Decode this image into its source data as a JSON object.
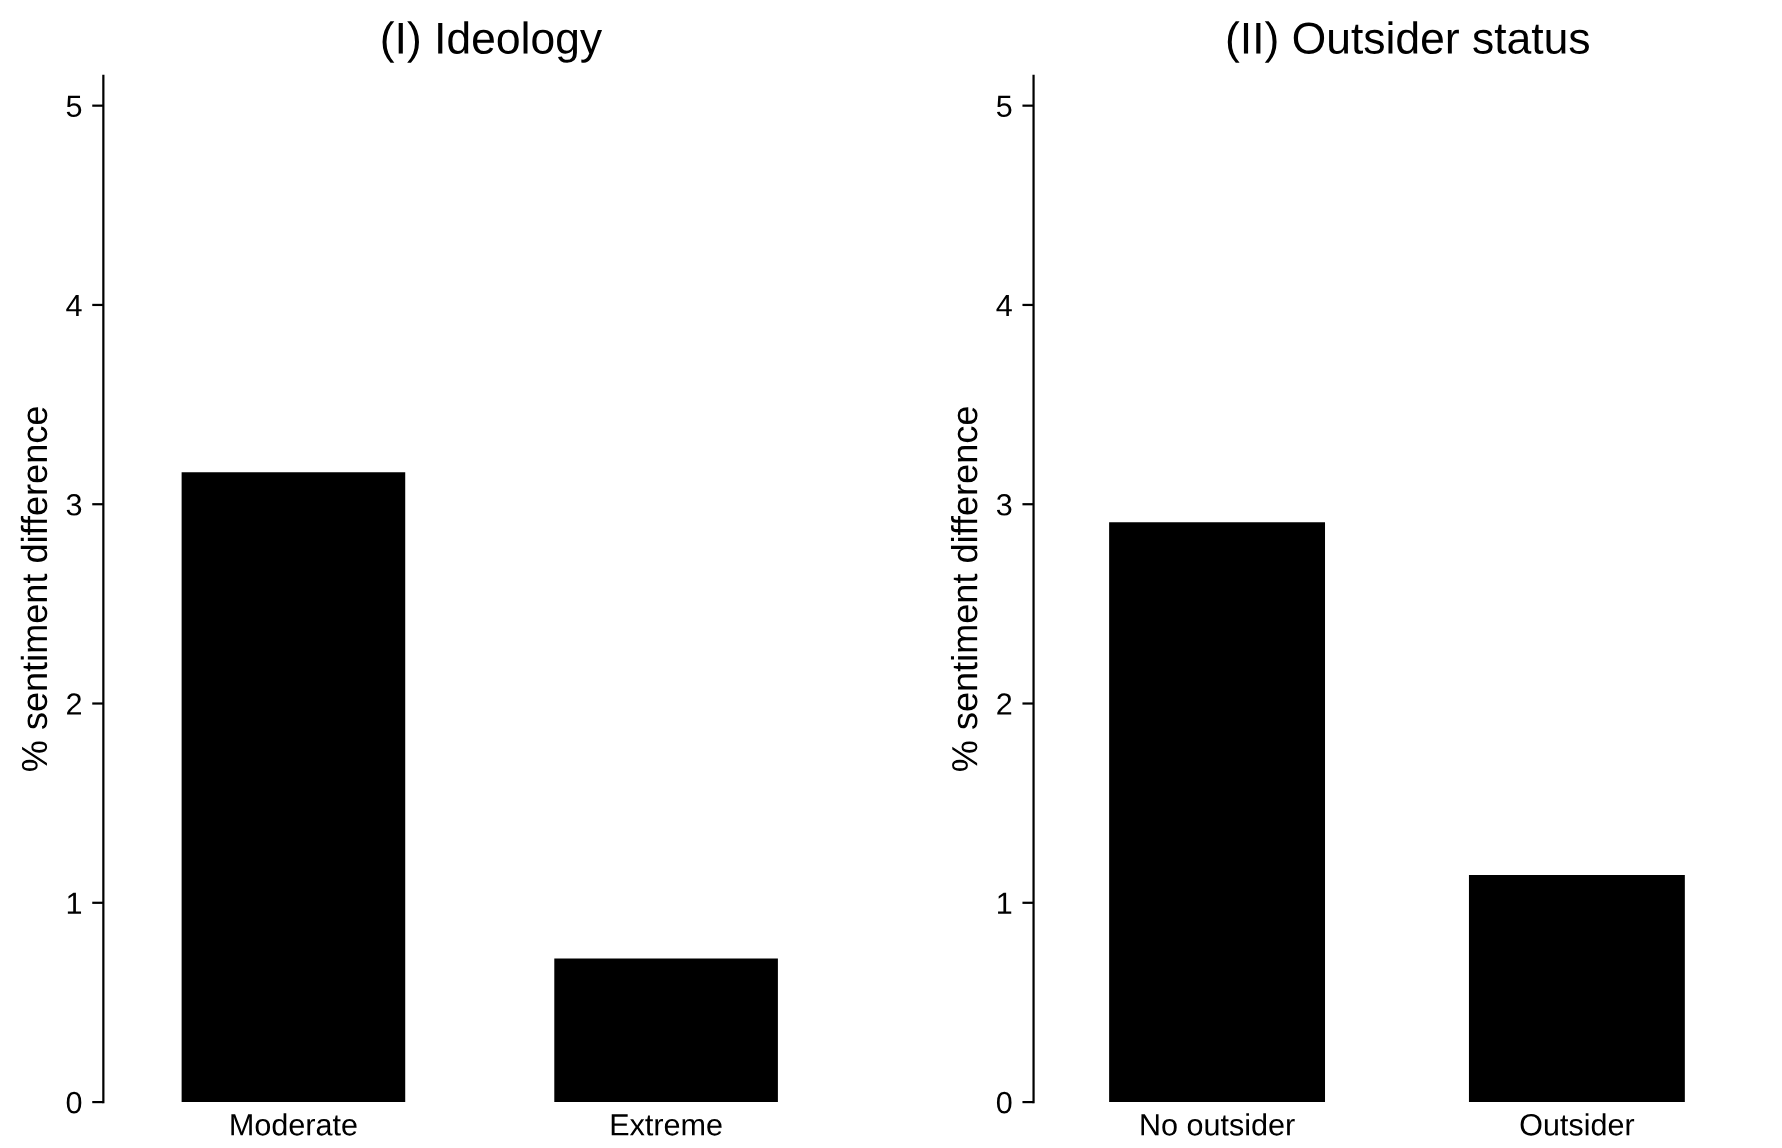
{
  "chart_data": [
    {
      "type": "bar",
      "title": "(I) Ideology",
      "ylabel": "% sentiment difference",
      "categories": [
        "Moderate",
        "Extreme"
      ],
      "values": [
        3.16,
        0.72
      ],
      "color": "#000000",
      "ylim": [
        0,
        5.15
      ],
      "yticks": [
        0,
        1,
        2,
        3,
        4,
        5
      ],
      "grid": false,
      "legend": false
    },
    {
      "type": "bar",
      "title": "(II) Outsider status",
      "ylabel": "% sentiment difference",
      "categories": [
        "No outsider",
        "Outsider"
      ],
      "values": [
        2.91,
        1.14
      ],
      "color": "#000000",
      "ylim": [
        0,
        5.15
      ],
      "yticks": [
        0,
        1,
        2,
        3,
        4,
        5
      ],
      "grid": false,
      "legend": false
    }
  ]
}
